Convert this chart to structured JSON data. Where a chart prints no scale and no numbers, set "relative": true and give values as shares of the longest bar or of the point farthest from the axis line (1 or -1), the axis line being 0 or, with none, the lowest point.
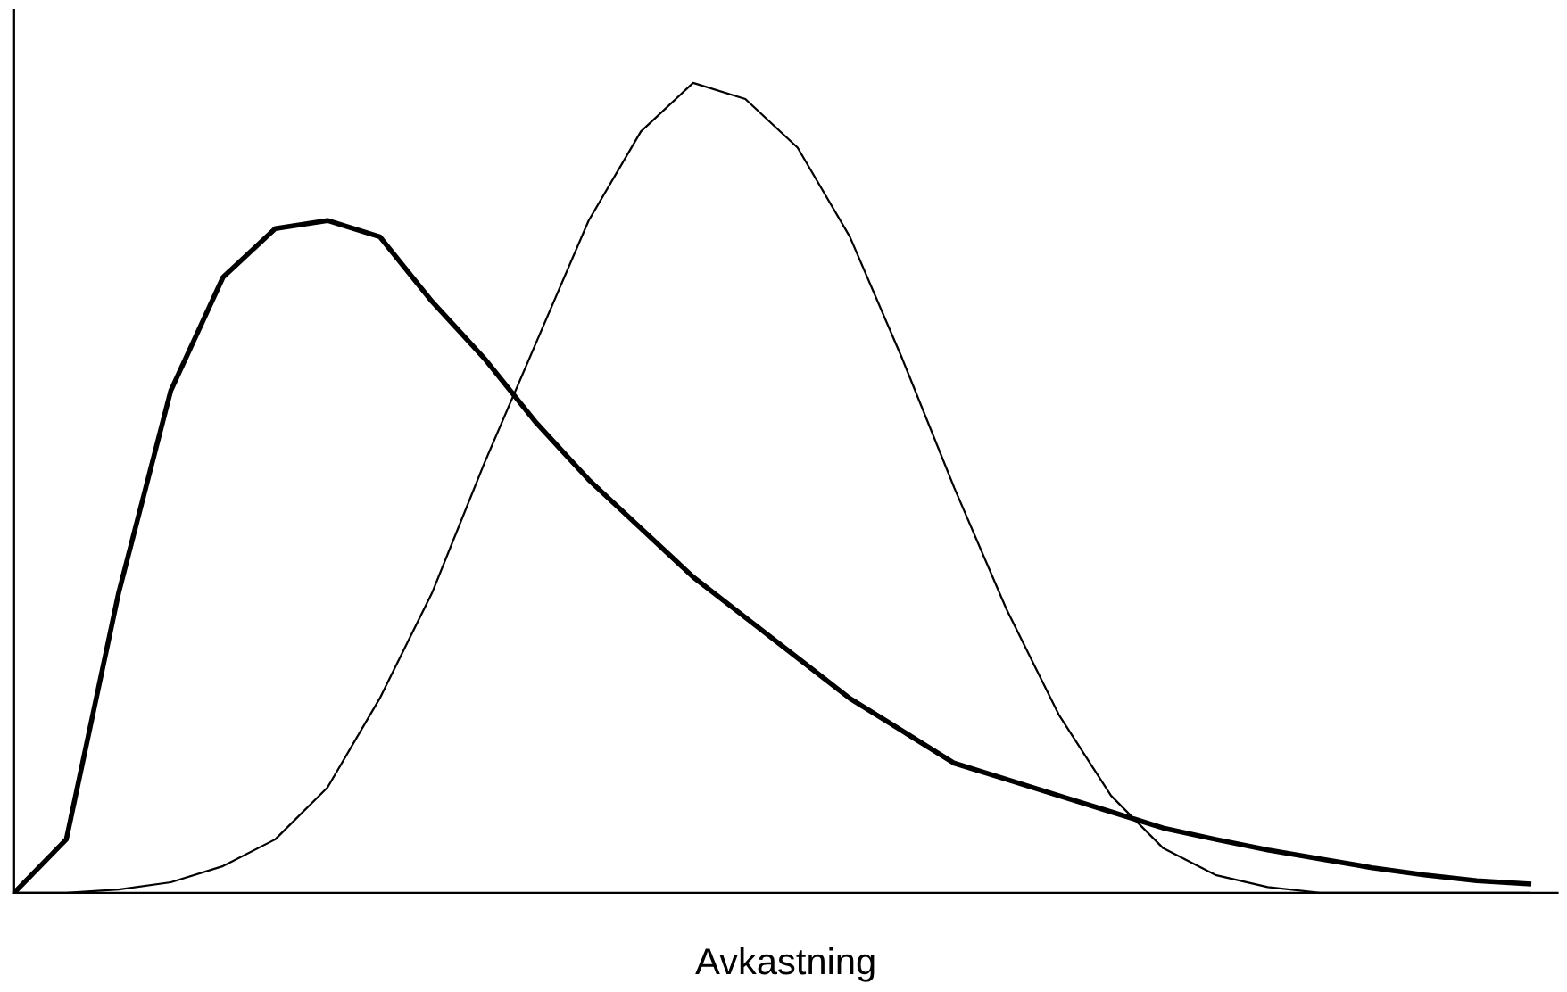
{
  "chart_data": {
    "type": "line",
    "xlabel": "Avkastning",
    "relative": true,
    "tick_labels": false,
    "categories": [
      null,
      null,
      null,
      null,
      null,
      null,
      null,
      null,
      null,
      null,
      null,
      null,
      null,
      null,
      null,
      null,
      null,
      null,
      null,
      null,
      null,
      null,
      null,
      null,
      null,
      null,
      null,
      null,
      null,
      null
    ],
    "series": [
      {
        "color": "#000000",
        "values": [
          0,
          0.066,
          0.37,
          0.62,
          0.76,
          0.82,
          0.83,
          0.81,
          0.73,
          0.66,
          0.58,
          0.51,
          0.45,
          0.39,
          0.34,
          0.29,
          0.24,
          0.2,
          0.16,
          0.14,
          0.12,
          0.1,
          0.08,
          0.066,
          0.053,
          0.042,
          0.031,
          0.022,
          0.015,
          0.011
        ]
      },
      {
        "color": "#000000",
        "values": [
          0,
          0,
          0.004,
          0.013,
          0.033,
          0.066,
          0.13,
          0.24,
          0.37,
          0.53,
          0.68,
          0.83,
          0.94,
          1,
          0.98,
          0.92,
          0.81,
          0.66,
          0.5,
          0.35,
          0.22,
          0.12,
          0.055,
          0.022,
          0.007,
          0,
          0,
          0,
          0,
          0
        ]
      }
    ]
  }
}
